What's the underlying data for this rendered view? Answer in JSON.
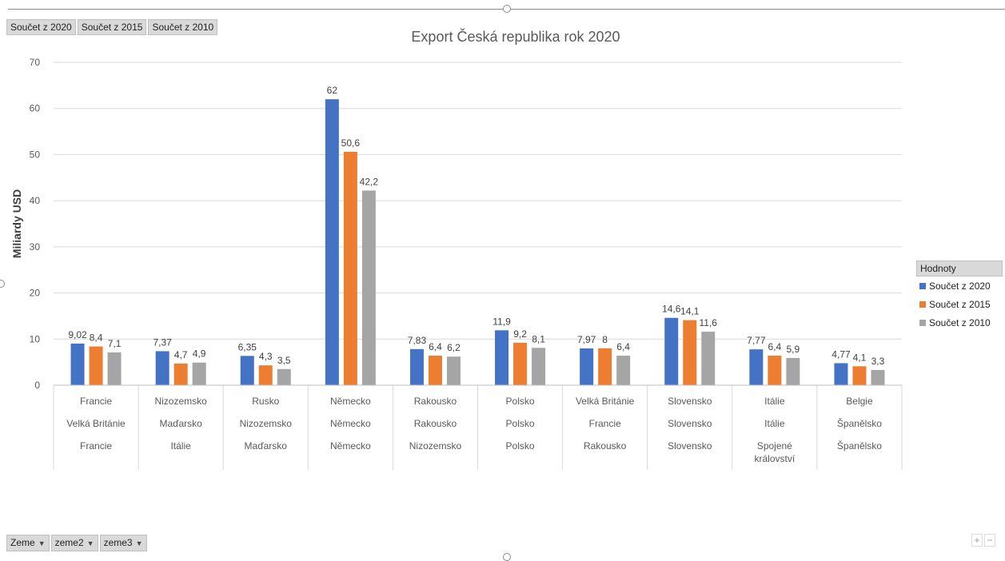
{
  "field_buttons_top": [
    "Součet z 2020",
    "Součet z 2015",
    "Součet z 2010"
  ],
  "field_buttons_bottom": [
    "Zeme",
    "zeme2",
    "zeme3"
  ],
  "zoom": {
    "plus": "+",
    "minus": "−"
  },
  "chart_data": {
    "type": "bar",
    "title": "Export Česká republika rok 2020",
    "ylabel": "Miliardy USD",
    "xlabel": "",
    "ylim": [
      0,
      70
    ],
    "yticks": [
      0,
      10,
      20,
      30,
      40,
      50,
      60,
      70
    ],
    "grid": true,
    "legend_position": "right",
    "legend_title": "Hodnoty",
    "categories": [
      [
        "Francie",
        "Velká Británie",
        "Francie"
      ],
      [
        "Nizozemsko",
        "Maďarsko",
        "Itálie"
      ],
      [
        "Rusko",
        "Nizozemsko",
        "Maďarsko"
      ],
      [
        "Německo",
        "Německo",
        "Německo"
      ],
      [
        "Rakousko",
        "Rakousko",
        "Nizozemsko"
      ],
      [
        "Polsko",
        "Polsko",
        "Polsko"
      ],
      [
        "Velká Británie",
        "Francie",
        "Rakousko"
      ],
      [
        "Slovensko",
        "Slovensko",
        "Slovensko"
      ],
      [
        "Itálie",
        "Itálie",
        "Spojené království"
      ],
      [
        "Belgie",
        "Španělsko",
        "Španělsko"
      ]
    ],
    "series": [
      {
        "name": "Součet z 2020",
        "color": "#4472c4",
        "values": [
          9.02,
          7.37,
          6.35,
          62,
          7.83,
          11.9,
          7.97,
          14.6,
          7.77,
          4.77
        ],
        "labels": [
          "9,02",
          "7,37",
          "6,35",
          "62",
          "7,83",
          "11,9",
          "7,97",
          "14,6",
          "7,77",
          "4,77"
        ]
      },
      {
        "name": "Součet z 2015",
        "color": "#ed7d31",
        "values": [
          8.4,
          4.7,
          4.3,
          50.6,
          6.4,
          9.2,
          8,
          14.1,
          6.4,
          4.1
        ],
        "labels": [
          "8,4",
          "4,7",
          "4,3",
          "50,6",
          "6,4",
          "9,2",
          "8",
          "14,1",
          "6,4",
          "4,1"
        ]
      },
      {
        "name": "Součet z 2010",
        "color": "#a5a5a5",
        "values": [
          7.1,
          4.9,
          3.5,
          42.2,
          6.2,
          8.1,
          6.4,
          11.6,
          5.9,
          3.3
        ],
        "labels": [
          "7,1",
          "4,9",
          "3,5",
          "42,2",
          "6,2",
          "8,1",
          "6,4",
          "11,6",
          "5,9",
          "3,3"
        ]
      }
    ]
  }
}
